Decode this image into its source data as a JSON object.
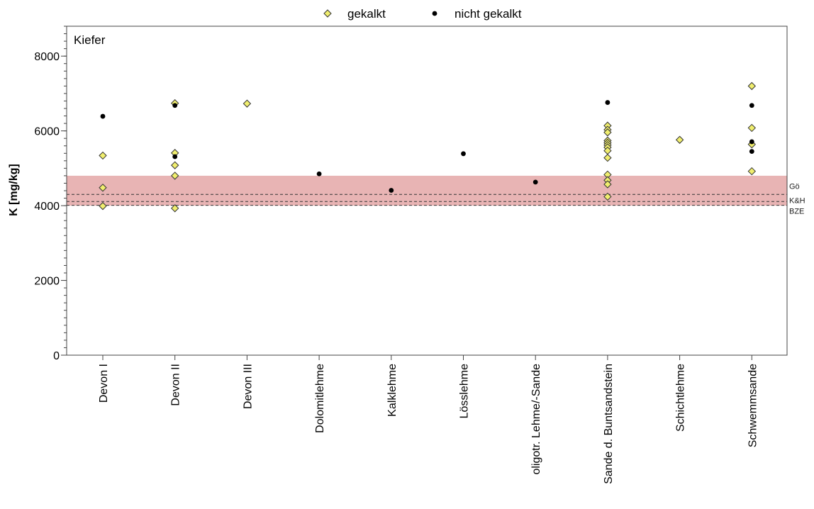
{
  "chart_data": {
    "type": "scatter",
    "panel_label": "Kiefer",
    "ylabel": "K [mg/kg]",
    "ylim": [
      0,
      8800
    ],
    "y_ticks": [
      0,
      2000,
      4000,
      6000,
      8000
    ],
    "y_tick_labels": [
      "0",
      "2000",
      "4000",
      "6000",
      "8000"
    ],
    "y_minor_step": 200,
    "categories": [
      "Devon I",
      "Devon II",
      "Devon III",
      "Dolomitlehme",
      "Kalklehme",
      "Lösslehme",
      "oligotr. Lehme/-Sande",
      "Sande d. Buntsandstein",
      "Schichtlehme",
      "Schwemmsande"
    ],
    "legend": {
      "position": "top-center"
    },
    "series": [
      {
        "name": "gekalkt",
        "marker": "diamond",
        "color": "#f0ee6e",
        "points": [
          {
            "category": "Devon I",
            "y": 5340
          },
          {
            "category": "Devon I",
            "y": 4480
          },
          {
            "category": "Devon I",
            "y": 3990
          },
          {
            "category": "Devon II",
            "y": 6740
          },
          {
            "category": "Devon II",
            "y": 5410
          },
          {
            "category": "Devon II",
            "y": 5080
          },
          {
            "category": "Devon II",
            "y": 4800
          },
          {
            "category": "Devon II",
            "y": 3930
          },
          {
            "category": "Devon III",
            "y": 6730
          },
          {
            "category": "Sande d. Buntsandstein",
            "y": 6140
          },
          {
            "category": "Sande d. Buntsandstein",
            "y": 6030
          },
          {
            "category": "Sande d. Buntsandstein",
            "y": 5960
          },
          {
            "category": "Sande d. Buntsandstein",
            "y": 5740
          },
          {
            "category": "Sande d. Buntsandstein",
            "y": 5680
          },
          {
            "category": "Sande d. Buntsandstein",
            "y": 5620
          },
          {
            "category": "Sande d. Buntsandstein",
            "y": 5560
          },
          {
            "category": "Sande d. Buntsandstein",
            "y": 5470
          },
          {
            "category": "Sande d. Buntsandstein",
            "y": 5280
          },
          {
            "category": "Sande d. Buntsandstein",
            "y": 4830
          },
          {
            "category": "Sande d. Buntsandstein",
            "y": 4680
          },
          {
            "category": "Sande d. Buntsandstein",
            "y": 4570
          },
          {
            "category": "Sande d. Buntsandstein",
            "y": 4240
          },
          {
            "category": "Schichtlehme",
            "y": 5760
          },
          {
            "category": "Schwemmsande",
            "y": 7200
          },
          {
            "category": "Schwemmsande",
            "y": 6080
          },
          {
            "category": "Schwemmsande",
            "y": 5640
          },
          {
            "category": "Schwemmsande",
            "y": 4920
          }
        ]
      },
      {
        "name": "nicht gekalkt",
        "marker": "circle",
        "color": "#000000",
        "points": [
          {
            "category": "Devon I",
            "y": 6390
          },
          {
            "category": "Devon II",
            "y": 6680
          },
          {
            "category": "Devon II",
            "y": 5310
          },
          {
            "category": "Dolomitlehme",
            "y": 4850
          },
          {
            "category": "Kalklehme",
            "y": 4410
          },
          {
            "category": "Lösslehme",
            "y": 5390
          },
          {
            "category": "oligotr. Lehme/-Sande",
            "y": 4630
          },
          {
            "category": "Sande d. Buntsandstein",
            "y": 6760
          },
          {
            "category": "Schwemmsande",
            "y": 6680
          },
          {
            "category": "Schwemmsande",
            "y": 5710
          },
          {
            "category": "Schwemmsande",
            "y": 5450
          }
        ]
      }
    ],
    "shaded_band": {
      "y_from": 4000,
      "y_to": 4800,
      "color": "#e8b4b4"
    },
    "reference_lines": [
      {
        "label": "Gö",
        "y": 4300
      },
      {
        "label": "K&H",
        "y": 4110
      },
      {
        "label": "BZE",
        "y": 4010
      }
    ]
  }
}
